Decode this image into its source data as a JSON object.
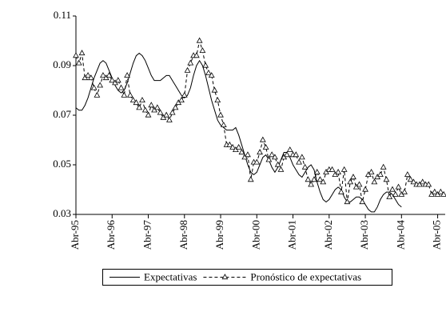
{
  "chart_data": {
    "type": "line",
    "categories": [
      "Abr-95",
      null,
      null,
      null,
      null,
      null,
      null,
      null,
      null,
      null,
      null,
      null,
      "Abr-96",
      null,
      null,
      null,
      null,
      null,
      null,
      null,
      null,
      null,
      null,
      null,
      "Abr-97",
      null,
      null,
      null,
      null,
      null,
      null,
      null,
      null,
      null,
      null,
      null,
      "Abr-98",
      null,
      null,
      null,
      null,
      null,
      null,
      null,
      null,
      null,
      null,
      null,
      "Abr-99",
      null,
      null,
      null,
      null,
      null,
      null,
      null,
      null,
      null,
      null,
      null,
      "Abr-00",
      null,
      null,
      null,
      null,
      null,
      null,
      null,
      null,
      null,
      null,
      null,
      "Abr-01",
      null,
      null,
      null,
      null,
      null,
      null,
      null,
      null,
      null,
      null,
      null,
      "Abr-02",
      null,
      null,
      null,
      null,
      null,
      null,
      null,
      null,
      null,
      null,
      null,
      "Abr-03",
      null,
      null,
      null,
      null,
      null,
      null,
      null,
      null,
      null,
      null,
      null,
      "Abr-04",
      null,
      null,
      null,
      null,
      null,
      null,
      null,
      null,
      null,
      null,
      null,
      "Abr-05",
      null,
      null
    ],
    "series": [
      {
        "name": "Expectativas",
        "color": "#000000",
        "line_style": "solid",
        "marker": "none",
        "values": [
          0.073,
          0.072,
          0.072,
          0.074,
          0.077,
          0.081,
          0.085,
          0.088,
          0.091,
          0.092,
          0.091,
          0.088,
          0.085,
          0.082,
          0.08,
          0.079,
          0.08,
          0.083,
          0.087,
          0.091,
          0.094,
          0.095,
          0.094,
          0.092,
          0.089,
          0.086,
          0.084,
          0.084,
          0.084,
          0.085,
          0.086,
          0.086,
          0.084,
          0.082,
          0.08,
          0.078,
          0.077,
          0.078,
          0.081,
          0.086,
          0.09,
          0.092,
          0.09,
          0.086,
          0.081,
          0.076,
          0.072,
          0.068,
          0.066,
          0.065,
          0.064,
          0.064,
          0.064,
          0.065,
          0.062,
          0.058,
          0.054,
          0.05,
          0.047,
          0.046,
          0.047,
          0.05,
          0.053,
          0.054,
          0.052,
          0.049,
          0.047,
          0.049,
          0.052,
          0.055,
          0.055,
          0.053,
          0.05,
          0.048,
          0.046,
          0.045,
          0.047,
          0.049,
          0.05,
          0.048,
          0.043,
          0.039,
          0.036,
          0.035,
          0.036,
          0.038,
          0.04,
          0.041,
          0.04,
          0.037,
          0.035,
          0.035,
          0.036,
          0.037,
          0.037,
          0.036,
          0.034,
          0.032,
          0.031,
          0.031,
          0.033,
          0.036,
          0.038,
          0.039,
          0.039,
          0.038,
          0.036,
          0.034,
          0.033,
          null,
          null,
          null,
          null,
          null,
          null,
          null,
          null,
          null,
          null,
          null,
          null,
          null,
          null
        ]
      },
      {
        "name": "Pronóstico de expectativas",
        "color": "#000000",
        "line_style": "dashed",
        "marker": "triangle",
        "values": [
          0.094,
          0.091,
          0.095,
          0.085,
          0.086,
          0.085,
          0.081,
          0.078,
          0.082,
          0.086,
          0.085,
          0.086,
          0.084,
          0.083,
          0.084,
          0.081,
          0.078,
          0.086,
          0.078,
          0.076,
          0.075,
          0.073,
          0.076,
          0.072,
          0.07,
          0.074,
          0.072,
          0.073,
          0.071,
          0.069,
          0.07,
          0.068,
          0.071,
          0.073,
          0.075,
          0.076,
          0.078,
          0.088,
          0.091,
          0.094,
          0.094,
          0.1,
          0.096,
          0.09,
          0.087,
          0.086,
          0.08,
          0.076,
          0.07,
          0.066,
          0.058,
          0.058,
          0.057,
          0.056,
          0.057,
          0.055,
          0.053,
          0.054,
          0.044,
          0.051,
          0.051,
          0.055,
          0.06,
          0.057,
          0.052,
          0.054,
          0.053,
          0.05,
          0.048,
          0.053,
          0.054,
          0.056,
          0.054,
          0.054,
          0.051,
          0.053,
          0.049,
          0.044,
          0.042,
          0.044,
          0.047,
          0.044,
          0.043,
          0.047,
          0.048,
          0.048,
          0.046,
          0.047,
          0.039,
          0.048,
          0.035,
          0.043,
          0.045,
          0.041,
          0.042,
          0.035,
          0.04,
          0.046,
          0.047,
          0.043,
          0.045,
          0.046,
          0.049,
          0.044,
          0.037,
          0.04,
          0.038,
          0.041,
          0.038,
          0.039,
          0.046,
          0.044,
          0.043,
          0.042,
          0.042,
          0.043,
          0.042,
          0.042,
          0.038,
          0.039,
          0.038,
          0.039,
          0.038
        ]
      }
    ],
    "ylim": [
      0.03,
      0.11
    ],
    "yticks": [
      0.03,
      0.05,
      0.07,
      0.09,
      0.11
    ],
    "grid": false,
    "legend": "bottom"
  }
}
